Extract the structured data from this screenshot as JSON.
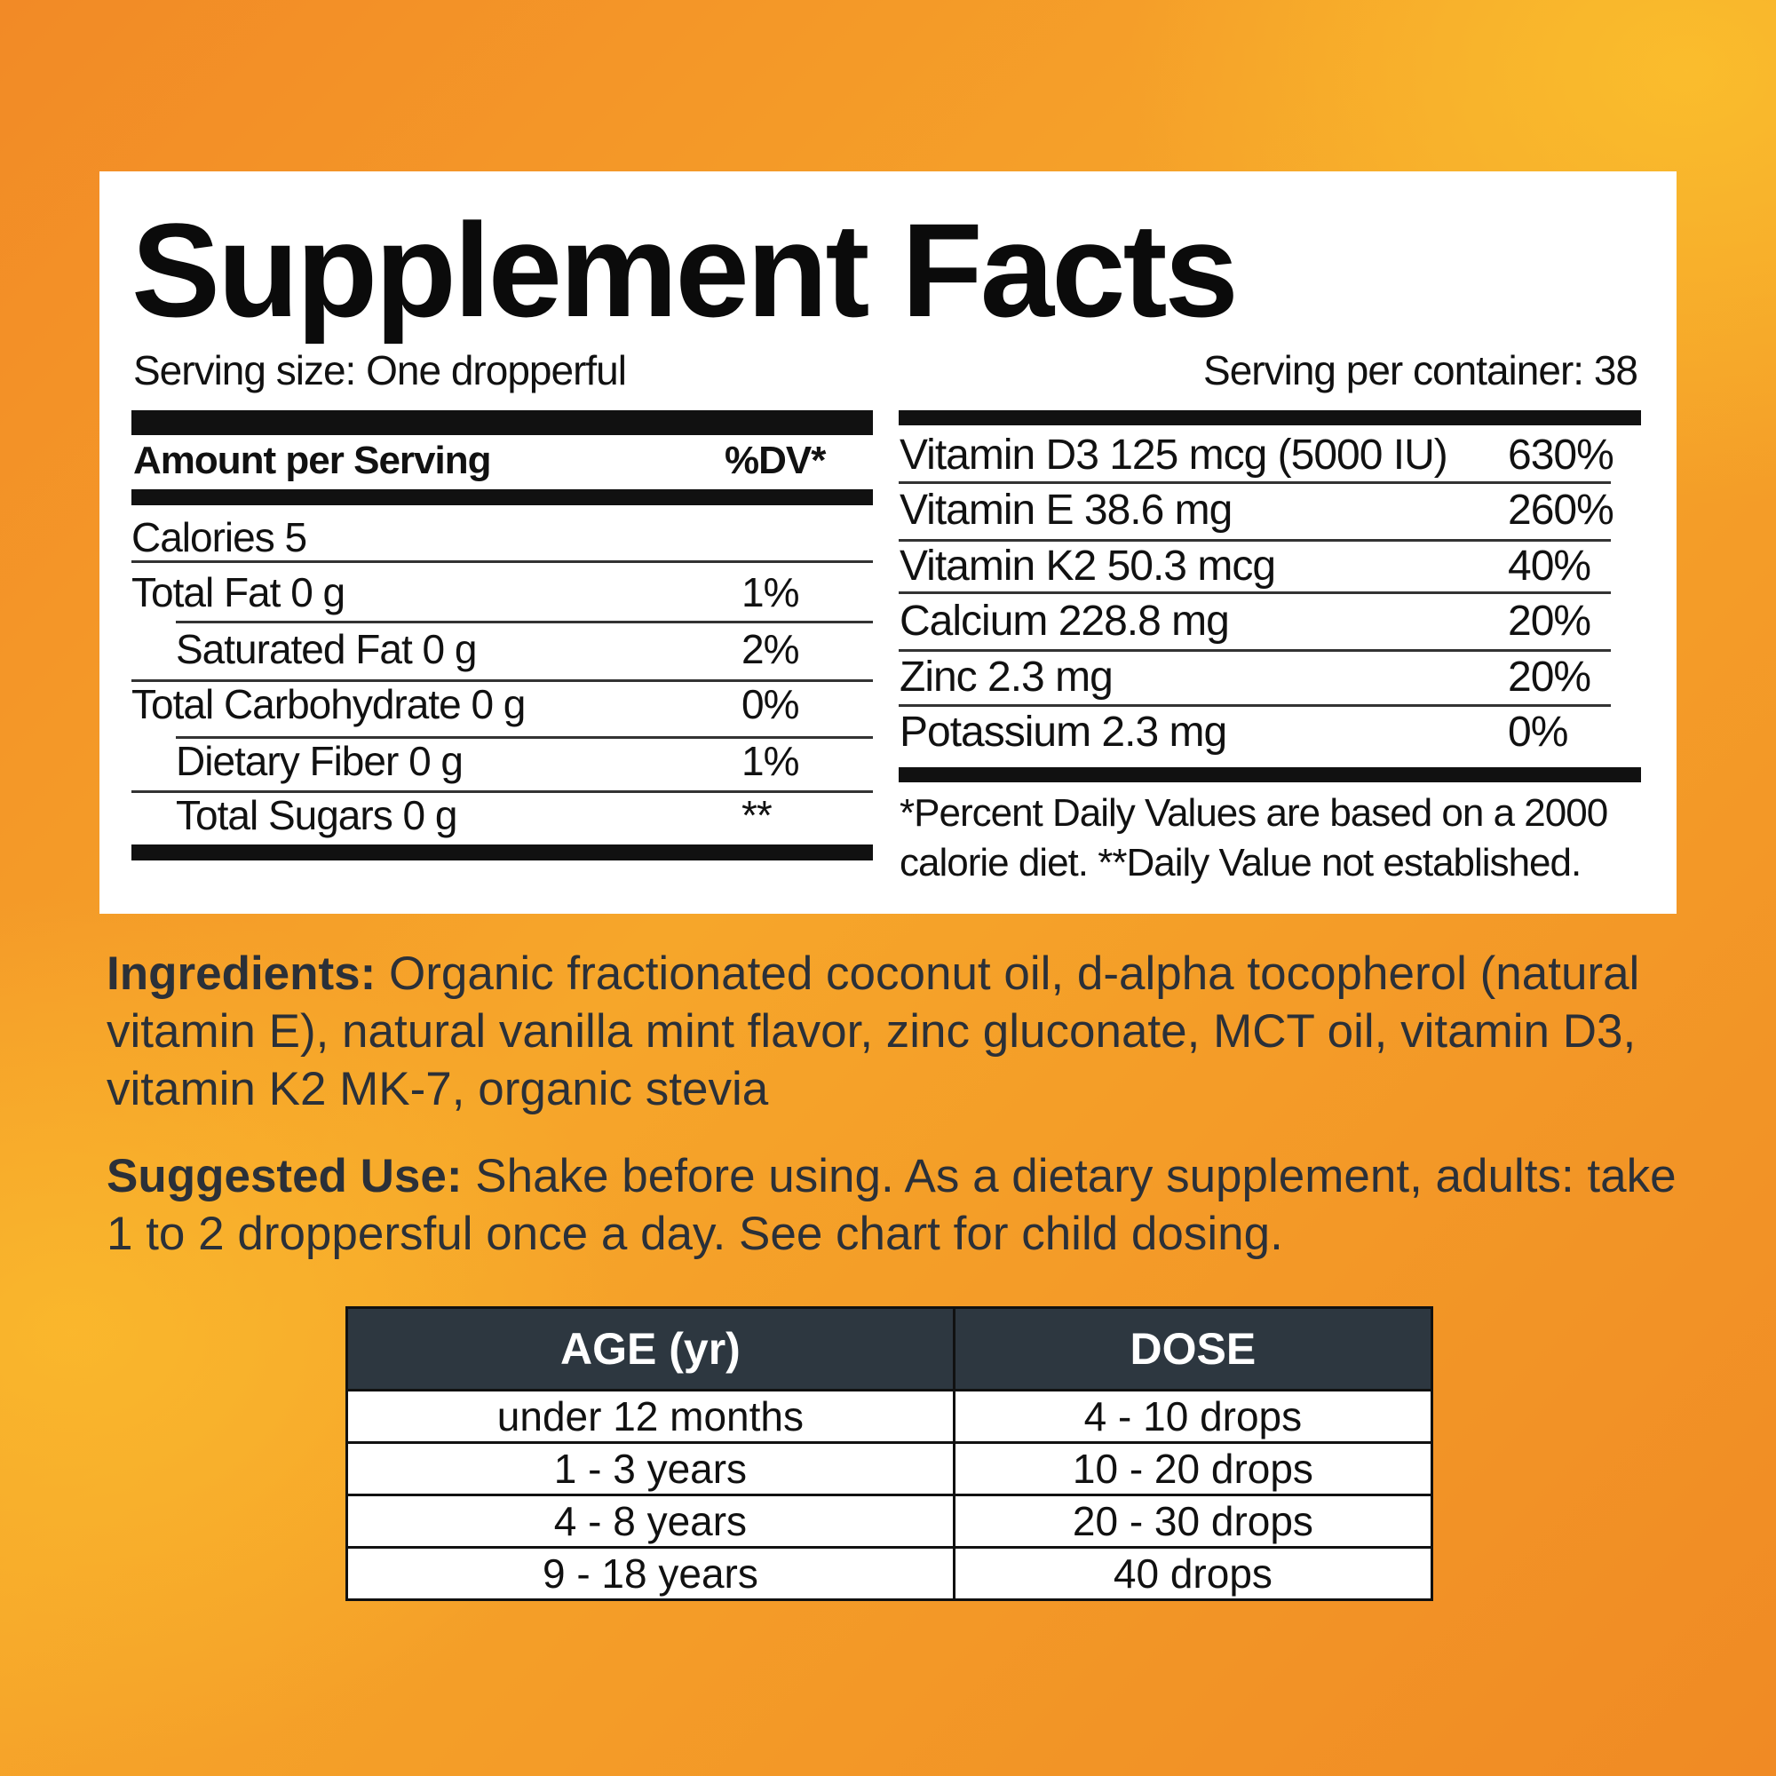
{
  "title": "Supplement Facts",
  "serving_size": "Serving size: One dropperful",
  "servings_per_container": "Serving per container: 38",
  "left_table": {
    "header_label": "Amount per Serving",
    "header_dv": "%DV*",
    "rows": [
      {
        "label": "Calories 5",
        "dv": "",
        "indent": false
      },
      {
        "label": "Total Fat 0 g",
        "dv": "1%",
        "indent": false
      },
      {
        "label": "Saturated Fat 0 g",
        "dv": "2%",
        "indent": true
      },
      {
        "label": "Total Carbohydrate 0 g",
        "dv": "0%",
        "indent": false
      },
      {
        "label": "Dietary Fiber 0 g",
        "dv": "1%",
        "indent": true
      },
      {
        "label": "Total Sugars 0 g",
        "dv": "**",
        "indent": true
      }
    ]
  },
  "right_table": {
    "rows": [
      {
        "label": "Vitamin D3 125 mcg (5000 IU)",
        "dv": "630%"
      },
      {
        "label": "Vitamin E 38.6 mg",
        "dv": "260%"
      },
      {
        "label": "Vitamin K2 50.3 mcg",
        "dv": "40%"
      },
      {
        "label": "Calcium 228.8 mg",
        "dv": "20%"
      },
      {
        "label": "Zinc 2.3 mg",
        "dv": "20%"
      },
      {
        "label": "Potassium 2.3 mg",
        "dv": "0%"
      }
    ],
    "footnote_line1": "*Percent Daily Values are based on a 2000",
    "footnote_line2": "calorie diet. **Daily Value not established."
  },
  "ingredients": {
    "label": "Ingredients:",
    "text": " Organic fractionated coconut oil, d-alpha tocopherol (natural vitamin E), natural vanilla mint flavor, zinc gluconate, MCT oil, vitamin D3, vitamin K2 MK-7, organic stevia"
  },
  "suggested_use": {
    "label": "Suggested Use:",
    "text": " Shake before using. As a dietary supplement, adults: take 1 to 2 droppersful once a day. See chart for child dosing."
  },
  "dosing_table": {
    "headers": [
      "AGE (yr)",
      "DOSE"
    ],
    "rows": [
      [
        "under 12 months",
        "4 - 10 drops"
      ],
      [
        "1 - 3 years",
        "10 - 20 drops"
      ],
      [
        "4 - 8 years",
        "20 - 30 drops"
      ],
      [
        "9 - 18 years",
        "40 drops"
      ]
    ]
  },
  "colors": {
    "background_orange": "#f08a24",
    "background_yellow": "#f8b62a",
    "table_header": "#2d3740",
    "text_dark": "#2b3038"
  }
}
